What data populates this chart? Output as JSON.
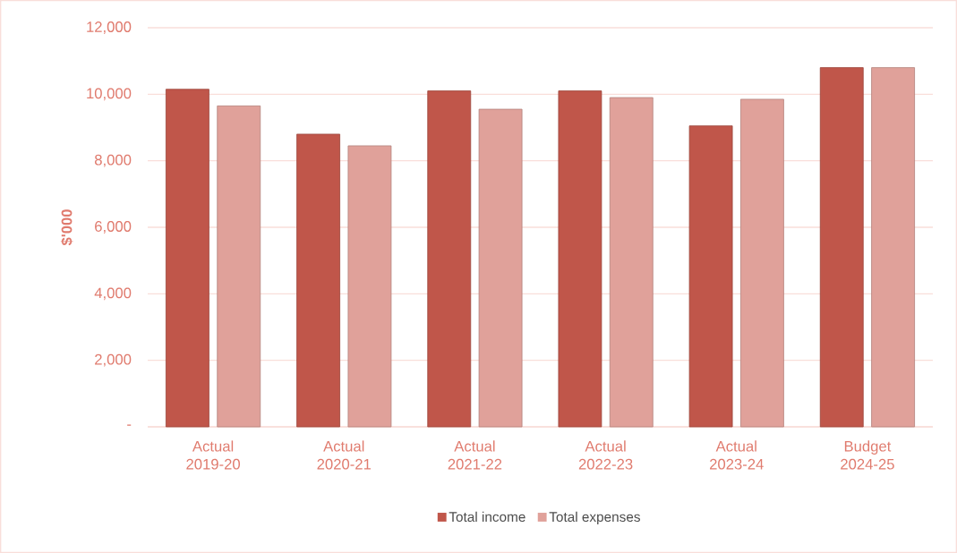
{
  "chart_data": {
    "type": "bar",
    "ylabel": "$'000",
    "categories": [
      "Actual 2019-20",
      "Actual 2020-21",
      "Actual 2021-22",
      "Actual 2022-23",
      "Actual 2023-24",
      "Budget 2024-25"
    ],
    "series": [
      {
        "name": "Total income",
        "color": "#c0564a",
        "values": [
          10150,
          8800,
          10100,
          10100,
          9050,
          10800
        ]
      },
      {
        "name": "Total expenses",
        "color": "#e0a19a",
        "values": [
          9650,
          8450,
          9550,
          9900,
          9850,
          10800
        ]
      }
    ],
    "ylim": [
      0,
      12000
    ],
    "yticks": [
      {
        "value": 0,
        "label": "-"
      },
      {
        "value": 2000,
        "label": "2,000"
      },
      {
        "value": 4000,
        "label": "4,000"
      },
      {
        "value": 6000,
        "label": "6,000"
      },
      {
        "value": 8000,
        "label": "8,000"
      },
      {
        "value": 10000,
        "label": "10,000"
      },
      {
        "value": 12000,
        "label": "12,000"
      }
    ],
    "grid": "y",
    "legend": "bottom"
  }
}
